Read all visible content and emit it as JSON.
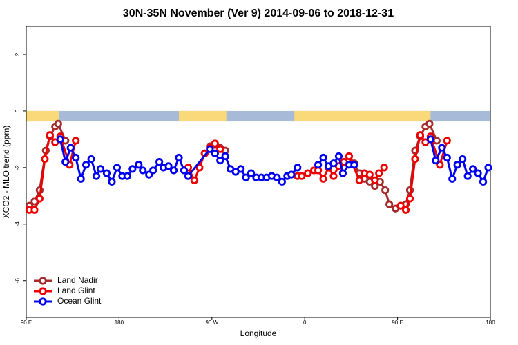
{
  "chart_data": {
    "type": "line",
    "title": "30N-35N November (Ver 9)   2014-09-06 to 2018-12-31",
    "xlabel": "Longitude",
    "ylabel": "XCO2 - MLO trend (ppm)",
    "xlim": [
      90,
      540
    ],
    "ylim": [
      -7.3,
      3.0
    ],
    "xticks": [
      {
        "value": 90,
        "label": "90 E"
      },
      180,
      {
        "value": 270,
        "label": "90 W"
      },
      {
        "value": 360,
        "label": "0"
      },
      {
        "value": 450,
        "label": "90 E"
      },
      {
        "value": 540,
        "label": "180"
      }
    ],
    "yticks": [
      2,
      0,
      -2,
      -4,
      -6
    ],
    "legend": "bottom-left",
    "surface_band": {
      "ylim": [
        -0.37,
        0
      ],
      "ocean_color": "#a7bbd9",
      "land_color": "#fad97a",
      "land": [
        [
          90,
          122
        ],
        [
          238,
          284
        ],
        [
          350,
          482
        ]
      ]
    },
    "series": [
      {
        "name": "Land Nadir",
        "color": "#a52a2a",
        "x": [
          93,
          98,
          103,
          109,
          113,
          118,
          121,
          128,
          null,
          263,
          268,
          273,
          278,
          283,
          null,
          403,
          408,
          413,
          418,
          423,
          428,
          433,
          438,
          442,
          448,
          453,
          458,
          462,
          467,
          472,
          477,
          481,
          488
        ],
        "values": [
          -3.35,
          -3.2,
          -2.8,
          -1.4,
          -0.9,
          -0.55,
          -0.45,
          -1.05,
          null,
          -1.5,
          -1.25,
          -1.2,
          -1.3,
          -1.4,
          null,
          -1.6,
          -1.85,
          -2.2,
          -2.4,
          -2.5,
          -2.65,
          -2.5,
          -2.8,
          -3.3,
          -3.45,
          -3.35,
          -3.3,
          -2.8,
          -1.4,
          -0.9,
          -0.55,
          -0.45,
          -1.05
        ]
      },
      {
        "name": "Land Glint",
        "color": "#ee0000",
        "x": [
          93,
          98,
          103,
          108,
          113,
          118,
          123,
          132,
          138,
          null,
          243,
          247,
          253,
          258,
          263,
          268,
          273,
          278,
          null,
          353,
          357,
          363,
          369,
          373,
          378,
          383,
          388,
          393,
          398,
          403,
          413,
          418,
          423,
          428,
          432,
          437,
          null,
          453,
          458,
          462,
          467,
          472,
          477,
          482,
          491,
          498
        ],
        "values": [
          -3.5,
          -3.5,
          -3.1,
          -1.7,
          -0.85,
          -1.1,
          -0.9,
          -1.9,
          -1.05,
          null,
          -2.1,
          -2.0,
          -2.45,
          -2.0,
          -1.5,
          -1.3,
          -1.15,
          -1.35,
          null,
          -2.3,
          -2.3,
          -2.2,
          -2.1,
          -2.1,
          -2.4,
          -2.0,
          -2.3,
          -1.95,
          -1.8,
          -1.6,
          -2.45,
          -2.2,
          -2.25,
          -2.45,
          -2.2,
          -2.0,
          null,
          -3.35,
          -3.5,
          -3.1,
          -1.7,
          -0.85,
          -1.1,
          -0.9,
          -1.9,
          -1.05
        ]
      },
      {
        "name": "Ocean Glint",
        "color": "#0000ee",
        "x": [
          123,
          128,
          133,
          138,
          143,
          148,
          153,
          158,
          162,
          168,
          173,
          178,
          183,
          188,
          193,
          199,
          203,
          209,
          213,
          219,
          223,
          228,
          233,
          238,
          243,
          247,
          268,
          273,
          278,
          283,
          288,
          293,
          298,
          303,
          308,
          313,
          318,
          323,
          328,
          333,
          338,
          343,
          347,
          353,
          null,
          373,
          378,
          383,
          388,
          393,
          397,
          403,
          408,
          null,
          482,
          487,
          493,
          498,
          503,
          508,
          513,
          518,
          523,
          528,
          533,
          538
        ],
        "values": [
          -1.0,
          -1.8,
          -1.3,
          -1.65,
          -2.4,
          -1.9,
          -1.7,
          -2.3,
          -2.05,
          -2.2,
          -2.5,
          -2.0,
          -2.3,
          -2.3,
          -2.05,
          -1.9,
          -2.1,
          -2.25,
          -2.1,
          -1.8,
          -2.0,
          -1.95,
          -2.1,
          -1.65,
          -2.1,
          -2.3,
          -1.35,
          -1.5,
          -1.75,
          -1.6,
          -2.05,
          -2.15,
          -2.05,
          -2.35,
          -2.2,
          -2.35,
          -2.35,
          -2.35,
          -2.3,
          -2.35,
          -2.5,
          -2.3,
          -2.25,
          -2.0,
          null,
          -1.9,
          -1.65,
          -1.95,
          -1.85,
          -1.6,
          -2.2,
          -1.9,
          -1.9,
          null,
          -1.0,
          -1.75,
          -1.3,
          -1.65,
          -2.4,
          -1.9,
          -1.7,
          -2.3,
          -2.05,
          -2.2,
          -2.5,
          -2.0
        ]
      }
    ]
  }
}
